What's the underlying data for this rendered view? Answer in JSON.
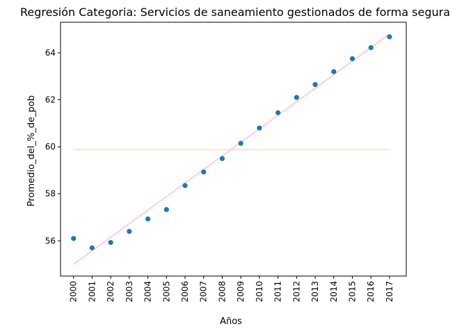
{
  "chart_data": {
    "type": "scatter",
    "title": "Regresión Categoria: Servicios de saneamiento gestionados de forma segura",
    "xlabel": "Años",
    "ylabel": "Promedio_del_%_de_pob",
    "x": [
      2000,
      2001,
      2002,
      2003,
      2004,
      2005,
      2006,
      2007,
      2008,
      2009,
      2010,
      2011,
      2012,
      2013,
      2014,
      2015,
      2016,
      2017
    ],
    "x_tick_labels": [
      "2000",
      "2001",
      "2002",
      "2003",
      "2004",
      "2005",
      "2006",
      "2007",
      "2008",
      "2009",
      "2010",
      "2011",
      "2012",
      "2013",
      "2014",
      "2015",
      "2016",
      "2017"
    ],
    "y_ticks": [
      56,
      58,
      60,
      62,
      64
    ],
    "y_tick_labels": [
      "56",
      "58",
      "60",
      "62",
      "64"
    ],
    "xlim": [
      1999.3,
      2017.9
    ],
    "ylim": [
      54.5,
      65.3
    ],
    "grid": false,
    "series": [
      {
        "kind": "scatter",
        "color": "#1f77b4",
        "values": [
          56.1,
          55.7,
          55.93,
          56.4,
          56.93,
          57.33,
          58.35,
          58.93,
          59.5,
          60.15,
          60.8,
          61.45,
          62.1,
          62.65,
          63.2,
          63.75,
          64.22,
          64.68
        ]
      },
      {
        "kind": "line",
        "color": "#ffc0cb",
        "x": [
          2000,
          2017
        ],
        "values": [
          55.0,
          64.8
        ]
      },
      {
        "kind": "line",
        "color": "#ffdab9",
        "x": [
          2000,
          2017
        ],
        "values": [
          59.88,
          59.88
        ]
      }
    ]
  }
}
